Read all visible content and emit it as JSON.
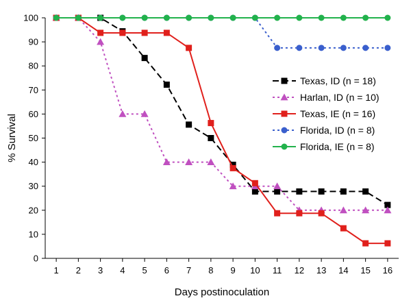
{
  "chart_data": {
    "type": "line",
    "title": "",
    "xlabel": "Days postinoculation",
    "ylabel": "% Survival",
    "x": [
      1,
      2,
      3,
      4,
      5,
      6,
      7,
      8,
      9,
      10,
      11,
      12,
      13,
      14,
      15,
      16
    ],
    "xlim": [
      0.5,
      16.5
    ],
    "ylim": [
      0,
      100
    ],
    "yticks": [
      0,
      10,
      20,
      30,
      40,
      50,
      60,
      70,
      80,
      90,
      100
    ],
    "grid": false,
    "legend_position": "right",
    "series": [
      {
        "name": "Texas, ID (n = 18)",
        "color": "#000000",
        "marker": "square",
        "line_style": "dashed",
        "values": [
          100,
          100,
          100,
          94.4,
          83.3,
          72.2,
          55.6,
          50,
          38.9,
          27.8,
          27.8,
          27.8,
          27.8,
          27.8,
          27.8,
          22.2
        ]
      },
      {
        "name": "Harlan, ID (n = 10)",
        "color": "#c050c0",
        "marker": "triangle",
        "line_style": "dotted",
        "values": [
          100,
          100,
          90,
          60,
          60,
          40,
          40,
          40,
          30,
          30,
          30,
          20,
          20,
          20,
          20,
          20
        ]
      },
      {
        "name": "Texas, IE (n = 16)",
        "color": "#e0201c",
        "marker": "square",
        "line_style": "solid",
        "values": [
          100,
          100,
          93.75,
          93.75,
          93.75,
          93.75,
          87.5,
          56.25,
          37.5,
          31.25,
          18.75,
          18.75,
          18.75,
          12.5,
          6.25,
          6.25
        ]
      },
      {
        "name": "Florida, ID (n = 8)",
        "color": "#3a5fcd",
        "marker": "circle",
        "line_style": "dotted",
        "values": [
          100,
          100,
          100,
          100,
          100,
          100,
          100,
          100,
          100,
          100,
          87.5,
          87.5,
          87.5,
          87.5,
          87.5,
          87.5
        ]
      },
      {
        "name": "Florida, IE (n = 8)",
        "color": "#22b24c",
        "marker": "circle",
        "line_style": "solid",
        "values": [
          100,
          100,
          100,
          100,
          100,
          100,
          100,
          100,
          100,
          100,
          100,
          100,
          100,
          100,
          100,
          100
        ]
      }
    ]
  }
}
